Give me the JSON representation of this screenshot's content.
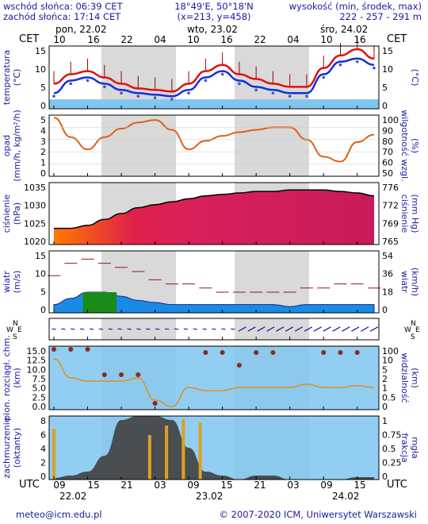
{
  "header": {
    "sunrise": "wschód słońca: 06:39 CET",
    "sunset": "zachód słońca: 17:14 CET",
    "coords": "18°49'E, 50°18'N",
    "grid": "(x=213, y=458)",
    "elev_title": "wysokość (min, środek, max)",
    "elev_values": "222 - 257 - 291 m"
  },
  "time_axis": {
    "top_tz": "CET",
    "bottom_tz": "UTC",
    "day_labels_top": [
      "pon, 22.02",
      "wto, 23.02",
      "śro, 24.02"
    ],
    "hour_labels_top": [
      "10",
      "16",
      "22",
      "04",
      "10",
      "16",
      "22",
      "04",
      "10",
      "16"
    ],
    "hour_labels_bottom": [
      "09",
      "15",
      "21",
      "03",
      "09",
      "15",
      "21",
      "03",
      "09",
      "15"
    ],
    "day_labels_bottom": [
      "22.02",
      "23.02",
      "24.02"
    ]
  },
  "panels": {
    "temperature": {
      "left_label": "temperatura\n(°C)",
      "right_label": "(°C)",
      "ticks": [
        "15",
        "10",
        "5",
        "0"
      ]
    },
    "precip": {
      "left_label": "opad\n(mm/h, kg/m²/h)",
      "right_label": "wilgotność wzgl.\n(%)",
      "left_ticks": [
        "5",
        "4",
        "3",
        "2",
        "1",
        "0"
      ],
      "right_ticks": [
        "100",
        "90",
        "80",
        "70",
        "60",
        "50"
      ]
    },
    "pressure": {
      "left_label": "ciśnienie\n(hPa)",
      "right_label": "ciśnienie\n(mm Hg)",
      "left_ticks": [
        "1035",
        "1030",
        "1025",
        "1020"
      ],
      "right_ticks": [
        "776",
        "772",
        "769",
        "765"
      ]
    },
    "wind": {
      "left_label": "wiatr\n(m/s)",
      "right_label": "wiatr\n(km/h)",
      "left_ticks": [
        "15",
        "10",
        "5",
        "0"
      ],
      "right_ticks": [
        "54",
        "36",
        "18",
        "0"
      ]
    },
    "wind_dir": {
      "left_label": "WNSE",
      "right_label": "WNSE"
    },
    "clouds_base": {
      "left_label": "pion. rozciągł. chm.\n(km)",
      "right_label": "widzialność\n(km)",
      "left_ticks": [
        "15.0",
        "12.5",
        "10.0",
        "7.5",
        "5.0",
        "2.5",
        "0.0"
      ],
      "right_ticks": [
        "100",
        "10",
        "5",
        "2",
        "1",
        "0.5",
        "0"
      ]
    },
    "cloudiness": {
      "left_label": "zachmurzenie\n(oktanty)",
      "right_label": "frakcja\nmgła",
      "left_ticks": [
        "8",
        "6",
        "4",
        "2",
        "0"
      ],
      "right_ticks": [
        "1",
        "0.75",
        "0.5",
        "0.25",
        "0"
      ]
    }
  },
  "footer": {
    "email": "meteo@icm.edu.pl",
    "copyright": "© 2007-2020 ICM, Uniwersytet Warszawski"
  },
  "colors": {
    "red": "#e01010",
    "blue": "#1030e0",
    "orange": "#e06010",
    "crimson": "#cc1a60",
    "sky": "#7fc6f0",
    "label_blue": "#1a1aa0"
  },
  "chart_data": {
    "type": "line",
    "x": [
      "10",
      "13",
      "16",
      "19",
      "22",
      "01",
      "04",
      "07",
      "10",
      "13",
      "16",
      "19",
      "22",
      "01",
      "04",
      "07",
      "10",
      "13",
      "16",
      "19"
    ],
    "series": [
      {
        "name": "temperatura max",
        "values": [
          5,
          8,
          9,
          7,
          5,
          3.5,
          3,
          2.5,
          5,
          9,
          11,
          8,
          6.5,
          5,
          4,
          4,
          10,
          14,
          16,
          13
        ]
      },
      {
        "name": "temperatura",
        "values": [
          2,
          6,
          7,
          5,
          3,
          2,
          1.5,
          1,
          3,
          7,
          9,
          6,
          4,
          3,
          2,
          2,
          8,
          12,
          13,
          11
        ]
      },
      {
        "name": "wilgotność wzgl.",
        "values": [
          98,
          82,
          72,
          82,
          89,
          94,
          96,
          88,
          72,
          79,
          83,
          86,
          88,
          90,
          90,
          80,
          66,
          62,
          78,
          84
        ]
      },
      {
        "name": "ciśnienie",
        "values": [
          1023,
          1023,
          1024,
          1026,
          1028,
          1030,
          1031,
          1032,
          1033,
          1034,
          1034.5,
          1035,
          1035.5,
          1035.5,
          1036,
          1036,
          1036,
          1035.5,
          1035,
          1034
        ]
      },
      {
        "name": "wiatr",
        "values": [
          2,
          3.5,
          5,
          5,
          4,
          3,
          2.5,
          2,
          2,
          2,
          2,
          2,
          2,
          2,
          1.5,
          2,
          2,
          2,
          2,
          2
        ]
      },
      {
        "name": "porywy",
        "values": [
          9,
          12,
          13,
          12,
          11,
          10,
          8,
          7,
          7,
          6,
          5,
          5,
          5,
          5,
          5,
          6,
          6,
          7,
          7,
          6
        ]
      },
      {
        "name": "zachmurzenie",
        "values": [
          0.2,
          0.5,
          1,
          3,
          7.5,
          8,
          8,
          7.5,
          4,
          1,
          0.5,
          0,
          0.5,
          0.5,
          0,
          0,
          0,
          0,
          0.3,
          0.3
        ]
      }
    ]
  }
}
